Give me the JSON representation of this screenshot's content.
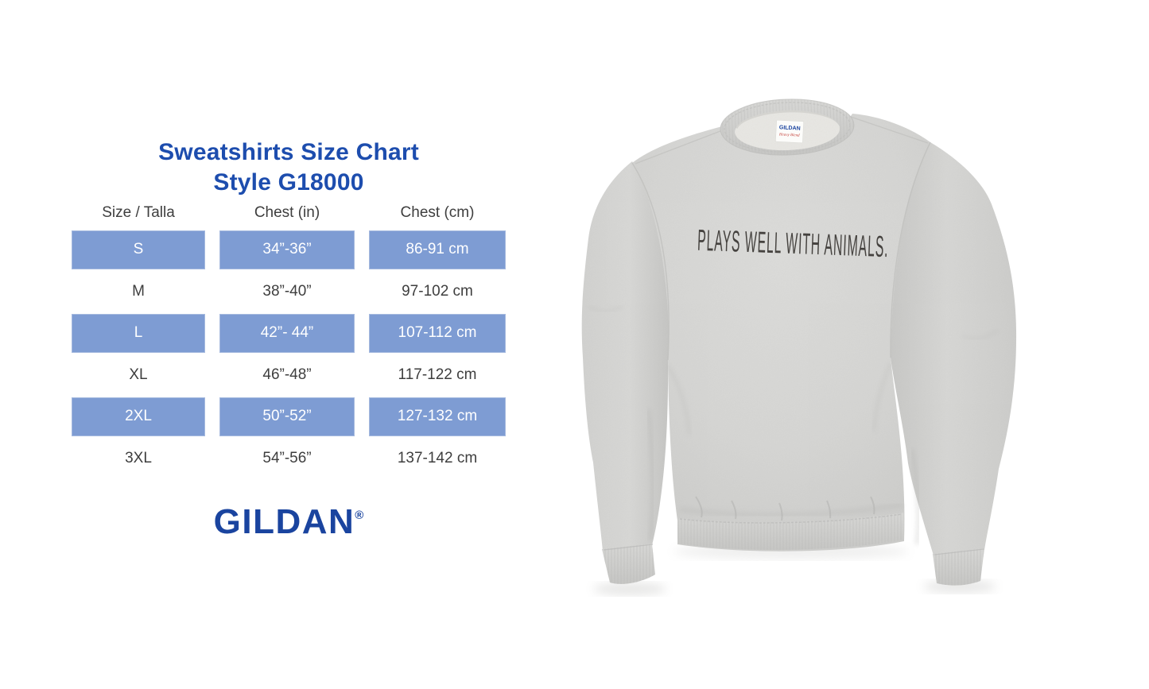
{
  "size_chart": {
    "title_line1": "Sweatshirts Size Chart",
    "title_line2": "Style G18000",
    "columns": [
      "Size / Talla",
      "Chest (in)",
      "Chest (cm)"
    ],
    "rows": [
      {
        "size": "S",
        "chest_in": "34”-36”",
        "chest_cm": "86-91 cm",
        "highlighted": true
      },
      {
        "size": "M",
        "chest_in": "38”-40”",
        "chest_cm": "97-102 cm",
        "highlighted": false
      },
      {
        "size": "L",
        "chest_in": "42”- 44”",
        "chest_cm": "107-112 cm",
        "highlighted": true
      },
      {
        "size": "XL",
        "chest_in": "46”-48”",
        "chest_cm": "117-122 cm",
        "highlighted": false
      },
      {
        "size": "2XL",
        "chest_in": "50”-52”",
        "chest_cm": "127-132 cm",
        "highlighted": true
      },
      {
        "size": "3XL",
        "chest_in": "54”-56”",
        "chest_cm": "137-142 cm",
        "highlighted": false
      }
    ],
    "brand_logo": "GILDAN",
    "registered_mark": "®"
  },
  "product_photo": {
    "chest_print_text": "PLAYS WELL WITH ANIMALS.",
    "neck_tag_brand": "GILDAN",
    "neck_tag_line": "Heavy Blend"
  },
  "colors": {
    "title_blue": "#1d4dae",
    "brand_blue": "#1a449f",
    "row_highlight_blue": "#7e9cd3",
    "row_border_blue": "#a6badf",
    "table_text_dark": "#3e3e3e",
    "shirt_gray": "#d6d6d4",
    "print_ink": "#33302c"
  },
  "chart_data": {
    "type": "table",
    "title": "Sweatshirts Size Chart Style G18000",
    "columns": [
      "Size / Talla",
      "Chest (in)",
      "Chest (cm)"
    ],
    "rows": [
      [
        "S",
        "34”-36”",
        "86-91 cm"
      ],
      [
        "M",
        "38”-40”",
        "97-102 cm"
      ],
      [
        "L",
        "42”- 44”",
        "107-112 cm"
      ],
      [
        "XL",
        "46”-48”",
        "117-122 cm"
      ],
      [
        "2XL",
        "50”-52”",
        "127-132 cm"
      ],
      [
        "3XL",
        "54”-56”",
        "137-142 cm"
      ]
    ],
    "highlighted_rows": [
      "S",
      "L",
      "2XL"
    ]
  }
}
